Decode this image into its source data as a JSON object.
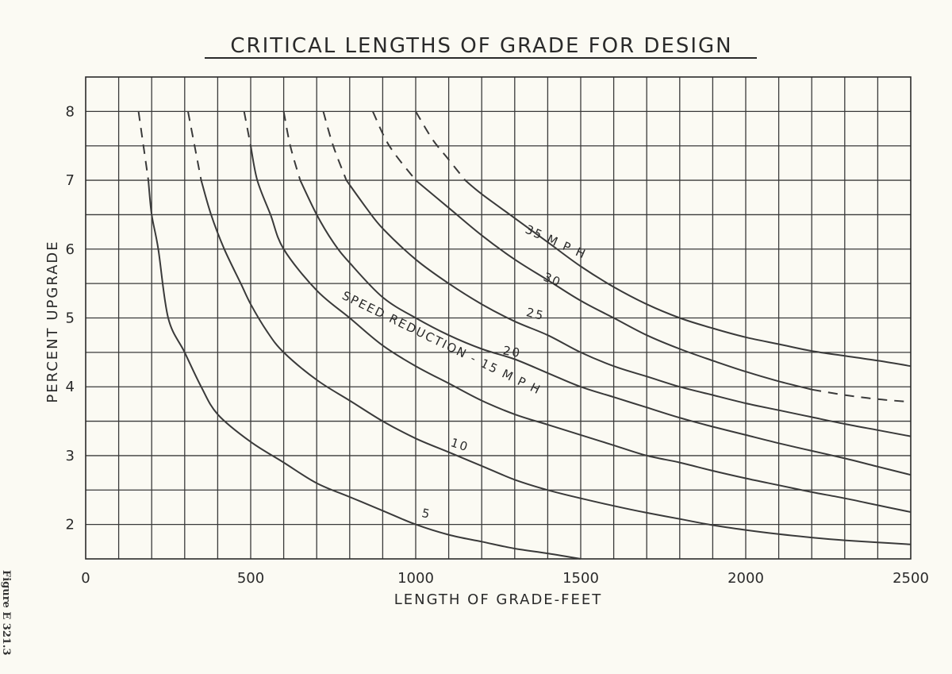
{
  "figure_note": "Figure E 321.3",
  "chart_data": {
    "type": "line",
    "title": "CRITICAL LENGTHS OF GRADE FOR DESIGN",
    "xlabel": "LENGTH OF GRADE-FEET",
    "ylabel": "PERCENT UPGRADE",
    "xlim": [
      0,
      2500
    ],
    "ylim": [
      1.5,
      8.5
    ],
    "x_ticks": [
      0,
      500,
      1000,
      1500,
      2000,
      2500
    ],
    "x_tick_labels": [
      "0",
      "500",
      "1000",
      "1500",
      "2000",
      "2500"
    ],
    "y_ticks": [
      2,
      3,
      4,
      5,
      6,
      7,
      8
    ],
    "y_tick_labels": [
      "2",
      "3",
      "4",
      "5",
      "6",
      "7",
      "8"
    ],
    "x_grid_step": 100,
    "y_grid_step": 0.5,
    "grid": true,
    "series": [
      {
        "name": "5",
        "label_at": [
          1030,
          2.1
        ],
        "dashed_until_y": 7.0,
        "points": [
          [
            160,
            8
          ],
          [
            175,
            7.5
          ],
          [
            190,
            7
          ],
          [
            200,
            6.5
          ],
          [
            220,
            6
          ],
          [
            250,
            5
          ],
          [
            300,
            4.5
          ],
          [
            350,
            4
          ],
          [
            400,
            3.6
          ],
          [
            500,
            3.2
          ],
          [
            600,
            2.9
          ],
          [
            700,
            2.6
          ],
          [
            800,
            2.4
          ],
          [
            900,
            2.2
          ],
          [
            1000,
            2.0
          ],
          [
            1100,
            1.85
          ],
          [
            1200,
            1.75
          ],
          [
            1300,
            1.65
          ],
          [
            1400,
            1.58
          ],
          [
            1500,
            1.5
          ]
        ]
      },
      {
        "name": "10",
        "label_at": [
          1130,
          3.1
        ],
        "dashed_until_y": 7.0,
        "points": [
          [
            310,
            8
          ],
          [
            330,
            7.5
          ],
          [
            350,
            7
          ],
          [
            380,
            6.5
          ],
          [
            420,
            6
          ],
          [
            470,
            5.5
          ],
          [
            500,
            5.2
          ],
          [
            550,
            4.8
          ],
          [
            600,
            4.5
          ],
          [
            700,
            4.1
          ],
          [
            800,
            3.8
          ],
          [
            900,
            3.5
          ],
          [
            1000,
            3.25
          ],
          [
            1100,
            3.05
          ],
          [
            1200,
            2.85
          ],
          [
            1300,
            2.65
          ],
          [
            1400,
            2.5
          ],
          [
            1500,
            2.38
          ],
          [
            1600,
            2.27
          ],
          [
            1700,
            2.17
          ],
          [
            1800,
            2.08
          ],
          [
            1900,
            1.99
          ],
          [
            2000,
            1.92
          ],
          [
            2100,
            1.86
          ],
          [
            2200,
            1.81
          ],
          [
            2300,
            1.77
          ],
          [
            2400,
            1.74
          ],
          [
            2500,
            1.71
          ]
        ]
      },
      {
        "name": "SPEED REDUCTION - 15 M P H",
        "heavy": true,
        "dashed_until_y": 7.5,
        "points": [
          [
            480,
            8
          ],
          [
            500,
            7.5
          ],
          [
            520,
            7
          ],
          [
            560,
            6.5
          ],
          [
            600,
            6
          ],
          [
            700,
            5.4
          ],
          [
            800,
            5.0
          ],
          [
            900,
            4.6
          ],
          [
            1000,
            4.3
          ],
          [
            1100,
            4.05
          ],
          [
            1200,
            3.8
          ],
          [
            1300,
            3.6
          ],
          [
            1400,
            3.45
          ],
          [
            1500,
            3.3
          ],
          [
            1600,
            3.15
          ],
          [
            1700,
            3.0
          ],
          [
            1800,
            2.9
          ],
          [
            1900,
            2.78
          ],
          [
            2000,
            2.67
          ],
          [
            2100,
            2.57
          ],
          [
            2200,
            2.47
          ],
          [
            2300,
            2.38
          ],
          [
            2400,
            2.28
          ],
          [
            2500,
            2.18
          ]
        ]
      },
      {
        "name": "20",
        "label_at": [
          1290,
          4.45
        ],
        "dashed_until_y": 7.0,
        "points": [
          [
            600,
            8
          ],
          [
            620,
            7.5
          ],
          [
            650,
            7
          ],
          [
            700,
            6.5
          ],
          [
            750,
            6.1
          ],
          [
            800,
            5.8
          ],
          [
            900,
            5.3
          ],
          [
            1000,
            5.0
          ],
          [
            1100,
            4.75
          ],
          [
            1200,
            4.55
          ],
          [
            1300,
            4.4
          ],
          [
            1400,
            4.2
          ],
          [
            1500,
            4.0
          ],
          [
            1600,
            3.85
          ],
          [
            1700,
            3.7
          ],
          [
            1800,
            3.55
          ],
          [
            1900,
            3.42
          ],
          [
            2000,
            3.3
          ],
          [
            2100,
            3.18
          ],
          [
            2200,
            3.07
          ],
          [
            2300,
            2.96
          ],
          [
            2400,
            2.84
          ],
          [
            2500,
            2.72
          ]
        ]
      },
      {
        "name": "25",
        "label_at": [
          1360,
          5.0
        ],
        "dashed_until_y": 7.0,
        "points": [
          [
            720,
            8
          ],
          [
            750,
            7.5
          ],
          [
            790,
            7
          ],
          [
            850,
            6.6
          ],
          [
            900,
            6.3
          ],
          [
            1000,
            5.85
          ],
          [
            1100,
            5.5
          ],
          [
            1200,
            5.2
          ],
          [
            1300,
            4.95
          ],
          [
            1400,
            4.75
          ],
          [
            1500,
            4.5
          ],
          [
            1600,
            4.3
          ],
          [
            1700,
            4.15
          ],
          [
            1800,
            4.0
          ],
          [
            1900,
            3.88
          ],
          [
            2000,
            3.76
          ],
          [
            2100,
            3.66
          ],
          [
            2200,
            3.56
          ],
          [
            2300,
            3.46
          ],
          [
            2400,
            3.37
          ],
          [
            2500,
            3.28
          ]
        ]
      },
      {
        "name": "30",
        "label_at": [
          1410,
          5.5
        ],
        "dashed_until_y": 7.0,
        "dashed_from_x": 2250,
        "points": [
          [
            870,
            8
          ],
          [
            920,
            7.5
          ],
          [
            1000,
            7
          ],
          [
            1100,
            6.6
          ],
          [
            1200,
            6.2
          ],
          [
            1300,
            5.85
          ],
          [
            1400,
            5.55
          ],
          [
            1500,
            5.25
          ],
          [
            1600,
            5.0
          ],
          [
            1700,
            4.75
          ],
          [
            1800,
            4.55
          ],
          [
            1900,
            4.38
          ],
          [
            2000,
            4.22
          ],
          [
            2100,
            4.08
          ],
          [
            2200,
            3.96
          ],
          [
            2300,
            3.88
          ],
          [
            2400,
            3.82
          ],
          [
            2500,
            3.78
          ]
        ]
      },
      {
        "name": "35 M P H",
        "label_at": [
          1420,
          6.05
        ],
        "dashed_until_y": 7.0,
        "points": [
          [
            1000,
            8
          ],
          [
            1050,
            7.6
          ],
          [
            1100,
            7.3
          ],
          [
            1150,
            7.0
          ],
          [
            1200,
            6.8
          ],
          [
            1300,
            6.45
          ],
          [
            1400,
            6.1
          ],
          [
            1500,
            5.75
          ],
          [
            1600,
            5.45
          ],
          [
            1700,
            5.2
          ],
          [
            1800,
            5.0
          ],
          [
            1900,
            4.85
          ],
          [
            2000,
            4.72
          ],
          [
            2100,
            4.62
          ],
          [
            2200,
            4.52
          ],
          [
            2300,
            4.45
          ],
          [
            2400,
            4.38
          ],
          [
            2500,
            4.3
          ]
        ]
      }
    ]
  }
}
